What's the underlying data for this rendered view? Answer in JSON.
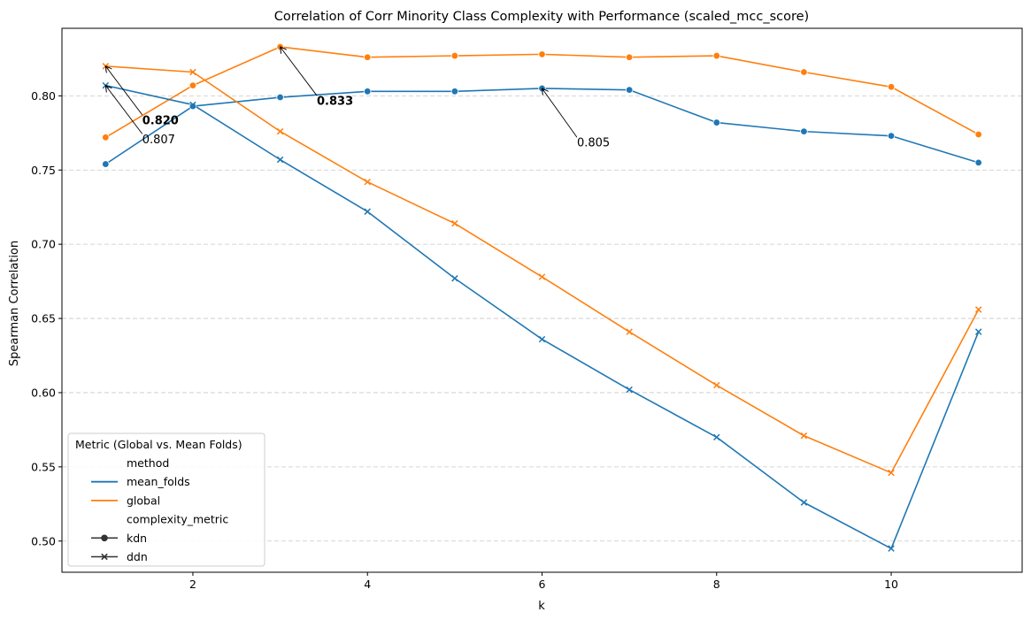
{
  "chart_data": {
    "type": "line",
    "title": "Correlation of Corr Minority Class Complexity with Performance (scaled_mcc_score)",
    "xlabel": "k",
    "ylabel": "Spearman Correlation",
    "xlim": [
      0.5,
      11.5
    ],
    "ylim": [
      0.479,
      0.8455
    ],
    "x_ticks": [
      2,
      4,
      6,
      8,
      10
    ],
    "y_ticks": [
      0.5,
      0.55,
      0.6,
      0.65,
      0.7,
      0.75,
      0.8
    ],
    "grid": "y-dashed",
    "x": [
      1,
      2,
      3,
      4,
      5,
      6,
      7,
      8,
      9,
      10,
      11
    ],
    "series": [
      {
        "name": "mean_folds",
        "complexity_metric": "kdn",
        "marker": "circle",
        "color": "#1f77b4",
        "values": [
          0.754,
          0.793,
          0.799,
          0.803,
          0.803,
          0.805,
          0.804,
          0.782,
          0.776,
          0.773,
          0.755
        ]
      },
      {
        "name": "global",
        "complexity_metric": "kdn",
        "marker": "circle",
        "color": "#ff7f0e",
        "values": [
          0.772,
          0.807,
          0.833,
          0.826,
          0.827,
          0.828,
          0.826,
          0.827,
          0.816,
          0.806,
          0.774
        ]
      },
      {
        "name": "mean_folds",
        "complexity_metric": "ddn",
        "marker": "x",
        "color": "#1f77b4",
        "values": [
          0.807,
          0.794,
          0.757,
          0.722,
          0.677,
          0.636,
          0.602,
          0.57,
          0.526,
          0.495,
          0.641
        ]
      },
      {
        "name": "global",
        "complexity_metric": "ddn",
        "marker": "x",
        "color": "#ff7f0e",
        "values": [
          0.82,
          0.816,
          0.776,
          0.742,
          0.714,
          0.678,
          0.641,
          0.605,
          0.571,
          0.546,
          0.656
        ]
      }
    ],
    "annotations": [
      {
        "text": "0.820",
        "bold": true,
        "x": 1,
        "y": 0.82,
        "text_x": 1.42,
        "text_y": 0.7836
      },
      {
        "text": "0.807",
        "bold": false,
        "x": 1,
        "y": 0.807,
        "text_x": 1.42,
        "text_y": 0.7708
      },
      {
        "text": "0.833",
        "bold": true,
        "x": 3,
        "y": 0.833,
        "text_x": 3.42,
        "text_y": 0.7966
      },
      {
        "text": "0.805",
        "bold": false,
        "x": 6,
        "y": 0.805,
        "text_x": 6.4,
        "text_y": 0.7685
      }
    ],
    "legend": {
      "placement": "lower-left",
      "title": "Metric (Global vs. Mean Folds)",
      "entries": [
        {
          "label": "method",
          "kind": "header"
        },
        {
          "label": "mean_folds",
          "kind": "line",
          "color": "#1f77b4"
        },
        {
          "label": "global",
          "kind": "line",
          "color": "#ff7f0e"
        },
        {
          "label": "complexity_metric",
          "kind": "header"
        },
        {
          "label": "kdn",
          "kind": "marker",
          "marker": "circle",
          "color": "#333333"
        },
        {
          "label": "ddn",
          "kind": "marker",
          "marker": "x",
          "color": "#333333"
        }
      ]
    }
  }
}
